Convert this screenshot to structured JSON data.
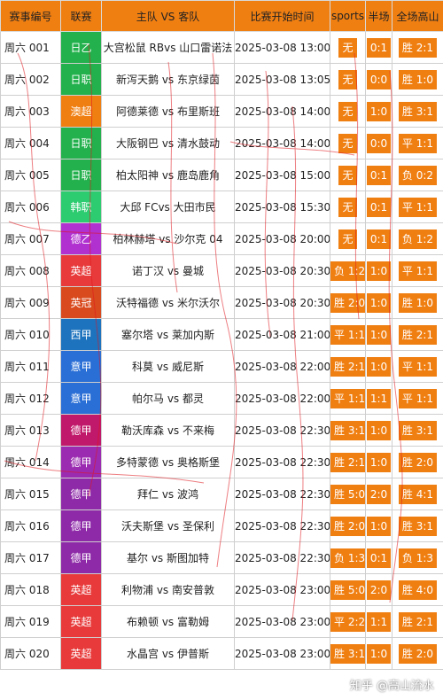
{
  "header": {
    "code": "赛事编号",
    "league": "联赛",
    "match": "主队 VS 客队",
    "time": "比赛开始时间",
    "sports": "sports",
    "half": "半场",
    "full": "全场高山"
  },
  "rows": [
    {
      "code": "周六 001",
      "league": "日乙",
      "league_color": "#22b14c",
      "match": "大宫松鼠 RBvs 山口雷诺法",
      "time": "2025-03-08 13:00",
      "sports": "无",
      "half": "0:1",
      "full": "胜 2:1"
    },
    {
      "code": "周六 002",
      "league": "日职",
      "league_color": "#22b14c",
      "match": "新泻天鹅 vs 东京绿茵",
      "time": "2025-03-08 13:05",
      "sports": "无",
      "half": "0:0",
      "full": "胜 1:0"
    },
    {
      "code": "周六 003",
      "league": "澳超",
      "league_color": "#f07f12",
      "match": "阿德莱德 vs 布里斯班",
      "time": "2025-03-08 14:00",
      "sports": "无",
      "half": "1:0",
      "full": "胜 3:1"
    },
    {
      "code": "周六 004",
      "league": "日职",
      "league_color": "#22b14c",
      "match": "大阪钢巴 vs 清水鼓动",
      "time": "2025-03-08 14:00",
      "sports": "无",
      "half": "0:0",
      "full": "平 1:1"
    },
    {
      "code": "周六 005",
      "league": "日职",
      "league_color": "#22b14c",
      "match": "柏太阳神 vs 鹿岛鹿角",
      "time": "2025-03-08 15:00",
      "sports": "无",
      "half": "0:1",
      "full": "负 0:2"
    },
    {
      "code": "周六 006",
      "league": "韩职",
      "league_color": "#2ecc71",
      "match": "大邱 FCvs 大田市民",
      "time": "2025-03-08 15:30",
      "sports": "无",
      "half": "0:1",
      "full": "平 1:1"
    },
    {
      "code": "周六 007",
      "league": "德乙",
      "league_color": "#b030d0",
      "match": "柏林赫塔 vs 沙尔克 04",
      "time": "2025-03-08 20:00",
      "sports": "无",
      "half": "0:1",
      "full": "负 1:2"
    },
    {
      "code": "周六 008",
      "league": "英超",
      "league_color": "#e83a3a",
      "match": "诺丁汉 vs 曼城",
      "time": "2025-03-08 20:30",
      "sports": "负 1:2",
      "half": "1:0",
      "full": "平 1:1"
    },
    {
      "code": "周六 009",
      "league": "英冠",
      "league_color": "#d94a1e",
      "match": "沃特福德 vs 米尔沃尔",
      "time": "2025-03-08 20:30",
      "sports": "胜 2:0",
      "half": "1:0",
      "full": "胜 1:0"
    },
    {
      "code": "周六 010",
      "league": "西甲",
      "league_color": "#1e73be",
      "match": "塞尔塔 vs 莱加内斯",
      "time": "2025-03-08 21:00",
      "sports": "平 1:1",
      "half": "1:0",
      "full": "胜 2:1"
    },
    {
      "code": "周六 011",
      "league": "意甲",
      "league_color": "#2a6fd6",
      "match": "科莫 vs 威尼斯",
      "time": "2025-03-08 22:00",
      "sports": "胜 2:1",
      "half": "1:0",
      "full": "平 1:1"
    },
    {
      "code": "周六 012",
      "league": "意甲",
      "league_color": "#2a6fd6",
      "match": "帕尔马 vs 都灵",
      "time": "2025-03-08 22:00",
      "sports": "平 1:1",
      "half": "1:1",
      "full": "平 1:1"
    },
    {
      "code": "周六 013",
      "league": "德甲",
      "league_color": "#c0186a",
      "match": "勒沃库森 vs 不来梅",
      "time": "2025-03-08 22:30",
      "sports": "胜 3:1",
      "half": "1:0",
      "full": "胜 3:1"
    },
    {
      "code": "周六 014",
      "league": "德甲",
      "league_color": "#9b2bb0",
      "match": "多特蒙德 vs 奥格斯堡",
      "time": "2025-03-08 22:30",
      "sports": "胜 2:1",
      "half": "1:0",
      "full": "胜 2:0"
    },
    {
      "code": "周六 015",
      "league": "德甲",
      "league_color": "#8e2aa8",
      "match": "拜仁 vs 波鸿",
      "time": "2025-03-08 22:30",
      "sports": "胜 5:0",
      "half": "2:0",
      "full": "胜 4:1"
    },
    {
      "code": "周六 016",
      "league": "德甲",
      "league_color": "#8e2aa8",
      "match": "沃夫斯堡 vs 圣保利",
      "time": "2025-03-08 22:30",
      "sports": "胜 2:0",
      "half": "1:0",
      "full": "胜 3:1"
    },
    {
      "code": "周六 017",
      "league": "德甲",
      "league_color": "#8e2aa8",
      "match": "基尔 vs 斯图加特",
      "time": "2025-03-08 22:30",
      "sports": "负 1:3",
      "half": "0:1",
      "full": "负 1:3"
    },
    {
      "code": "周六 018",
      "league": "英超",
      "league_color": "#e83a3a",
      "match": "利物浦 vs 南安普敦",
      "time": "2025-03-08 23:00",
      "sports": "胜 5:0",
      "half": "2:0",
      "full": "胜 4:0"
    },
    {
      "code": "周六 019",
      "league": "英超",
      "league_color": "#e83a3a",
      "match": "布赖顿 vs 富勒姆",
      "time": "2025-03-08 23:00",
      "sports": "平 2:2",
      "half": "1:1",
      "full": "胜 2:1"
    },
    {
      "code": "周六 020",
      "league": "英超",
      "league_color": "#e83a3a",
      "match": "水晶宫 vs 伊普斯",
      "time": "2025-03-08 23:00",
      "sports": "胜 3:1",
      "half": "1:0",
      "full": "胜 2:0"
    }
  ],
  "watermark": "知乎 @高山流水"
}
